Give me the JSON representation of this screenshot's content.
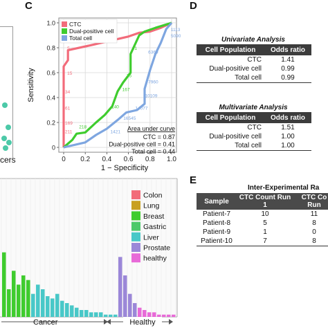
{
  "panel_c": {
    "label": "C"
  },
  "panel_d": {
    "label": "D"
  },
  "panel_e": {
    "label": "E"
  },
  "left_fragment": {
    "text": "cers"
  },
  "colors": {
    "ctc": "#f26b7a",
    "dual": "#3fcc2e",
    "total": "#7ea6e0",
    "teal": "#4cc9a8"
  },
  "chart_data": [
    {
      "type": "line",
      "title": "",
      "xlabel": "1 − Specificity",
      "ylabel": "Sensitivity",
      "xlim": [
        0,
        1
      ],
      "ylim": [
        0,
        1
      ],
      "x_ticks": [
        "0",
        "0.2",
        "0.4",
        "0.6",
        "0.8",
        "1.0"
      ],
      "y_ticks": [
        "0",
        "0.2",
        "0.4",
        "0.6",
        "0.8",
        "1.0"
      ],
      "legend": "top-left",
      "legend_items": [
        "CTC",
        "Dual-positive cell",
        "Total cell"
      ],
      "grid": true,
      "series": [
        {
          "name": "CTC",
          "color": "#f26b7a",
          "x": [
            0,
            0,
            0,
            0,
            0.04,
            0.04,
            0.25,
            0.45,
            0.6,
            0.7,
            0.8,
            0.9,
            0.95,
            1.0
          ],
          "y": [
            0,
            0.3,
            0.62,
            0.65,
            0.7,
            0.78,
            0.82,
            0.86,
            0.89,
            0.92,
            0.93,
            0.96,
            0.98,
            1.0
          ]
        },
        {
          "name": "Dual-positive cell",
          "color": "#3fcc2e",
          "x": [
            0,
            0.08,
            0.12,
            0.2,
            0.3,
            0.38,
            0.45,
            0.5,
            0.55,
            0.62,
            0.62,
            0.7,
            0.75,
            0.85,
            1.0
          ],
          "y": [
            0,
            0.06,
            0.11,
            0.12,
            0.2,
            0.26,
            0.33,
            0.45,
            0.52,
            0.6,
            0.75,
            0.9,
            0.93,
            0.96,
            1.0
          ]
        },
        {
          "name": "Total cell",
          "color": "#7ea6e0",
          "x": [
            0,
            0.2,
            0.3,
            0.4,
            0.5,
            0.58,
            0.68,
            0.75,
            0.75,
            0.8,
            0.85,
            0.9,
            0.95,
            1.0
          ],
          "y": [
            0,
            0.04,
            0.1,
            0.15,
            0.22,
            0.28,
            0.3,
            0.35,
            0.47,
            0.62,
            0.75,
            0.84,
            0.95,
            1.0
          ]
        }
      ],
      "point_labels": [
        {
          "text": "5",
          "x": 0.02,
          "y": 0.8,
          "color": "#f26b7a"
        },
        {
          "text": "15",
          "x": 0.02,
          "y": 0.6,
          "color": "#f26b7a"
        },
        {
          "text": "34",
          "x": 0.0,
          "y": 0.45,
          "color": "#f26b7a"
        },
        {
          "text": "61",
          "x": 0.0,
          "y": 0.32,
          "color": "#f26b7a"
        },
        {
          "text": "169",
          "x": 0.0,
          "y": 0.2,
          "color": "#f26b7a"
        },
        {
          "text": "211",
          "x": 0.0,
          "y": 0.13,
          "color": "#f26b7a"
        },
        {
          "text": "41",
          "x": 0.62,
          "y": 0.8,
          "color": "#3fcc2e"
        },
        {
          "text": "75",
          "x": 0.57,
          "y": 0.58,
          "color": "#3fcc2e"
        },
        {
          "text": "167",
          "x": 0.53,
          "y": 0.47,
          "color": "#3fcc2e"
        },
        {
          "text": "140",
          "x": 0.43,
          "y": 0.33,
          "color": "#3fcc2e"
        },
        {
          "text": "218",
          "x": 0.13,
          "y": 0.17,
          "color": "#3fcc2e"
        },
        {
          "text": "6369",
          "x": 0.77,
          "y": 0.77,
          "color": "#7ea6e0"
        },
        {
          "text": "7960",
          "x": 0.77,
          "y": 0.53,
          "color": "#7ea6e0"
        },
        {
          "text": "10109",
          "x": 0.74,
          "y": 0.42,
          "color": "#7ea6e0"
        },
        {
          "text": "14077",
          "x": 0.65,
          "y": 0.32,
          "color": "#7ea6e0"
        },
        {
          "text": "16545",
          "x": 0.54,
          "y": 0.24,
          "color": "#7ea6e0"
        },
        {
          "text": "1421",
          "x": 0.42,
          "y": 0.13,
          "color": "#7ea6e0"
        },
        {
          "text": "5090",
          "x": 0.98,
          "y": 0.9,
          "color": "#7ea6e0"
        },
        {
          "text": "1113",
          "x": 0.98,
          "y": 0.95,
          "color": "#7ea6e0"
        }
      ],
      "auc": {
        "title": "Area under curve",
        "lines": [
          "CTC = 0.87",
          "Dual-positive cell = 0.41",
          "Total cell = 0.44"
        ]
      }
    },
    {
      "type": "bar",
      "title": "",
      "xlabel": "",
      "ylabel": "",
      "legend": "top-right",
      "legend_items": [
        {
          "name": "Colon",
          "color": "#f26b7a"
        },
        {
          "name": "Lung",
          "color": "#c8a020"
        },
        {
          "name": "Breast",
          "color": "#3fcc2e"
        },
        {
          "name": "Gastric",
          "color": "#4cc96a"
        },
        {
          "name": "Liver",
          "color": "#48c8c8"
        },
        {
          "name": "Prostate",
          "color": "#9b87d8"
        },
        {
          "name": "healthy",
          "color": "#e86ad8"
        }
      ],
      "group_labels": [
        "Cancer",
        "Healthy"
      ],
      "values": [
        28,
        12,
        20,
        14,
        18,
        16,
        10,
        14,
        12,
        9,
        8,
        10,
        7,
        6,
        5,
        4,
        3,
        3,
        2,
        2,
        2,
        1,
        1,
        1,
        26,
        18,
        10,
        6,
        4,
        3,
        2,
        2,
        1,
        1,
        1,
        1
      ],
      "value_colors": [
        "#3fcc2e",
        "#3fcc2e",
        "#3fcc2e",
        "#3fcc2e",
        "#3fcc2e",
        "#3fcc2e",
        "#48c8c8",
        "#48c8c8",
        "#48c8c8",
        "#48c8c8",
        "#48c8c8",
        "#48c8c8",
        "#48c8c8",
        "#48c8c8",
        "#48c8c8",
        "#48c8c8",
        "#48c8c8",
        "#48c8c8",
        "#48c8c8",
        "#48c8c8",
        "#48c8c8",
        "#48c8c8",
        "#48c8c8",
        "#48c8c8",
        "#9b87d8",
        "#9b87d8",
        "#9b87d8",
        "#9b87d8",
        "#e86ad8",
        "#e86ad8",
        "#e86ad8",
        "#e86ad8",
        "#e86ad8",
        "#e86ad8",
        "#e86ad8",
        "#e86ad8"
      ]
    }
  ],
  "univariate": {
    "title": "Univariate Analysis",
    "headers": [
      "Cell Population",
      "Odds ratio"
    ],
    "rows": [
      {
        "label": "CTC",
        "value": "1.41"
      },
      {
        "label": "Dual-positive cell",
        "value": "0.99"
      },
      {
        "label": "Total cell",
        "value": "0.99"
      }
    ]
  },
  "multivariate": {
    "title": "Multivariate Analysis",
    "headers": [
      "Cell Population",
      "Odds ratio"
    ],
    "rows": [
      {
        "label": "CTC",
        "value": "1.51"
      },
      {
        "label": "Dual-positive cell",
        "value": "1.00"
      },
      {
        "label": "Total cell",
        "value": "1.00"
      }
    ]
  },
  "inter": {
    "title": "Inter-Experimental Ra",
    "headers": [
      "Sample",
      "CTC Count Run 1",
      "CTC Co Run"
    ],
    "rows": [
      [
        "Patient-7",
        "10",
        "11"
      ],
      [
        "Patient-8",
        "5",
        "8"
      ],
      [
        "Patient-9",
        "1",
        "0"
      ],
      [
        "Patient-10",
        "7",
        "8"
      ]
    ]
  }
}
